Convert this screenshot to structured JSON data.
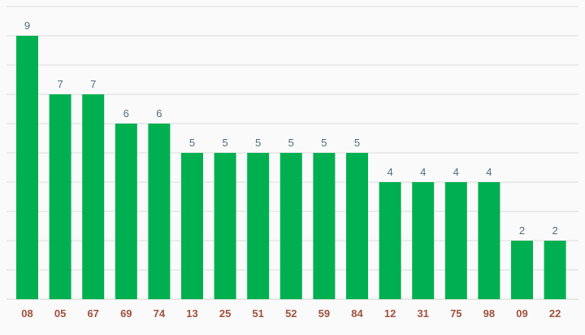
{
  "chart_data": {
    "type": "bar",
    "categories": [
      "08",
      "05",
      "67",
      "69",
      "74",
      "13",
      "25",
      "51",
      "52",
      "59",
      "84",
      "12",
      "31",
      "75",
      "98",
      "09",
      "22"
    ],
    "values": [
      9,
      7,
      7,
      6,
      6,
      5,
      5,
      5,
      5,
      5,
      5,
      4,
      4,
      4,
      4,
      2,
      2
    ],
    "title": "",
    "xlabel": "",
    "ylabel": "",
    "ylim": [
      0,
      10
    ],
    "grid": true,
    "legend": "none",
    "colors": {
      "bar": "#00b050",
      "value_label": "#4a6f8a",
      "category_label": "#a0523d",
      "grid": "#dcdcdc",
      "background": "#fafafa"
    }
  }
}
